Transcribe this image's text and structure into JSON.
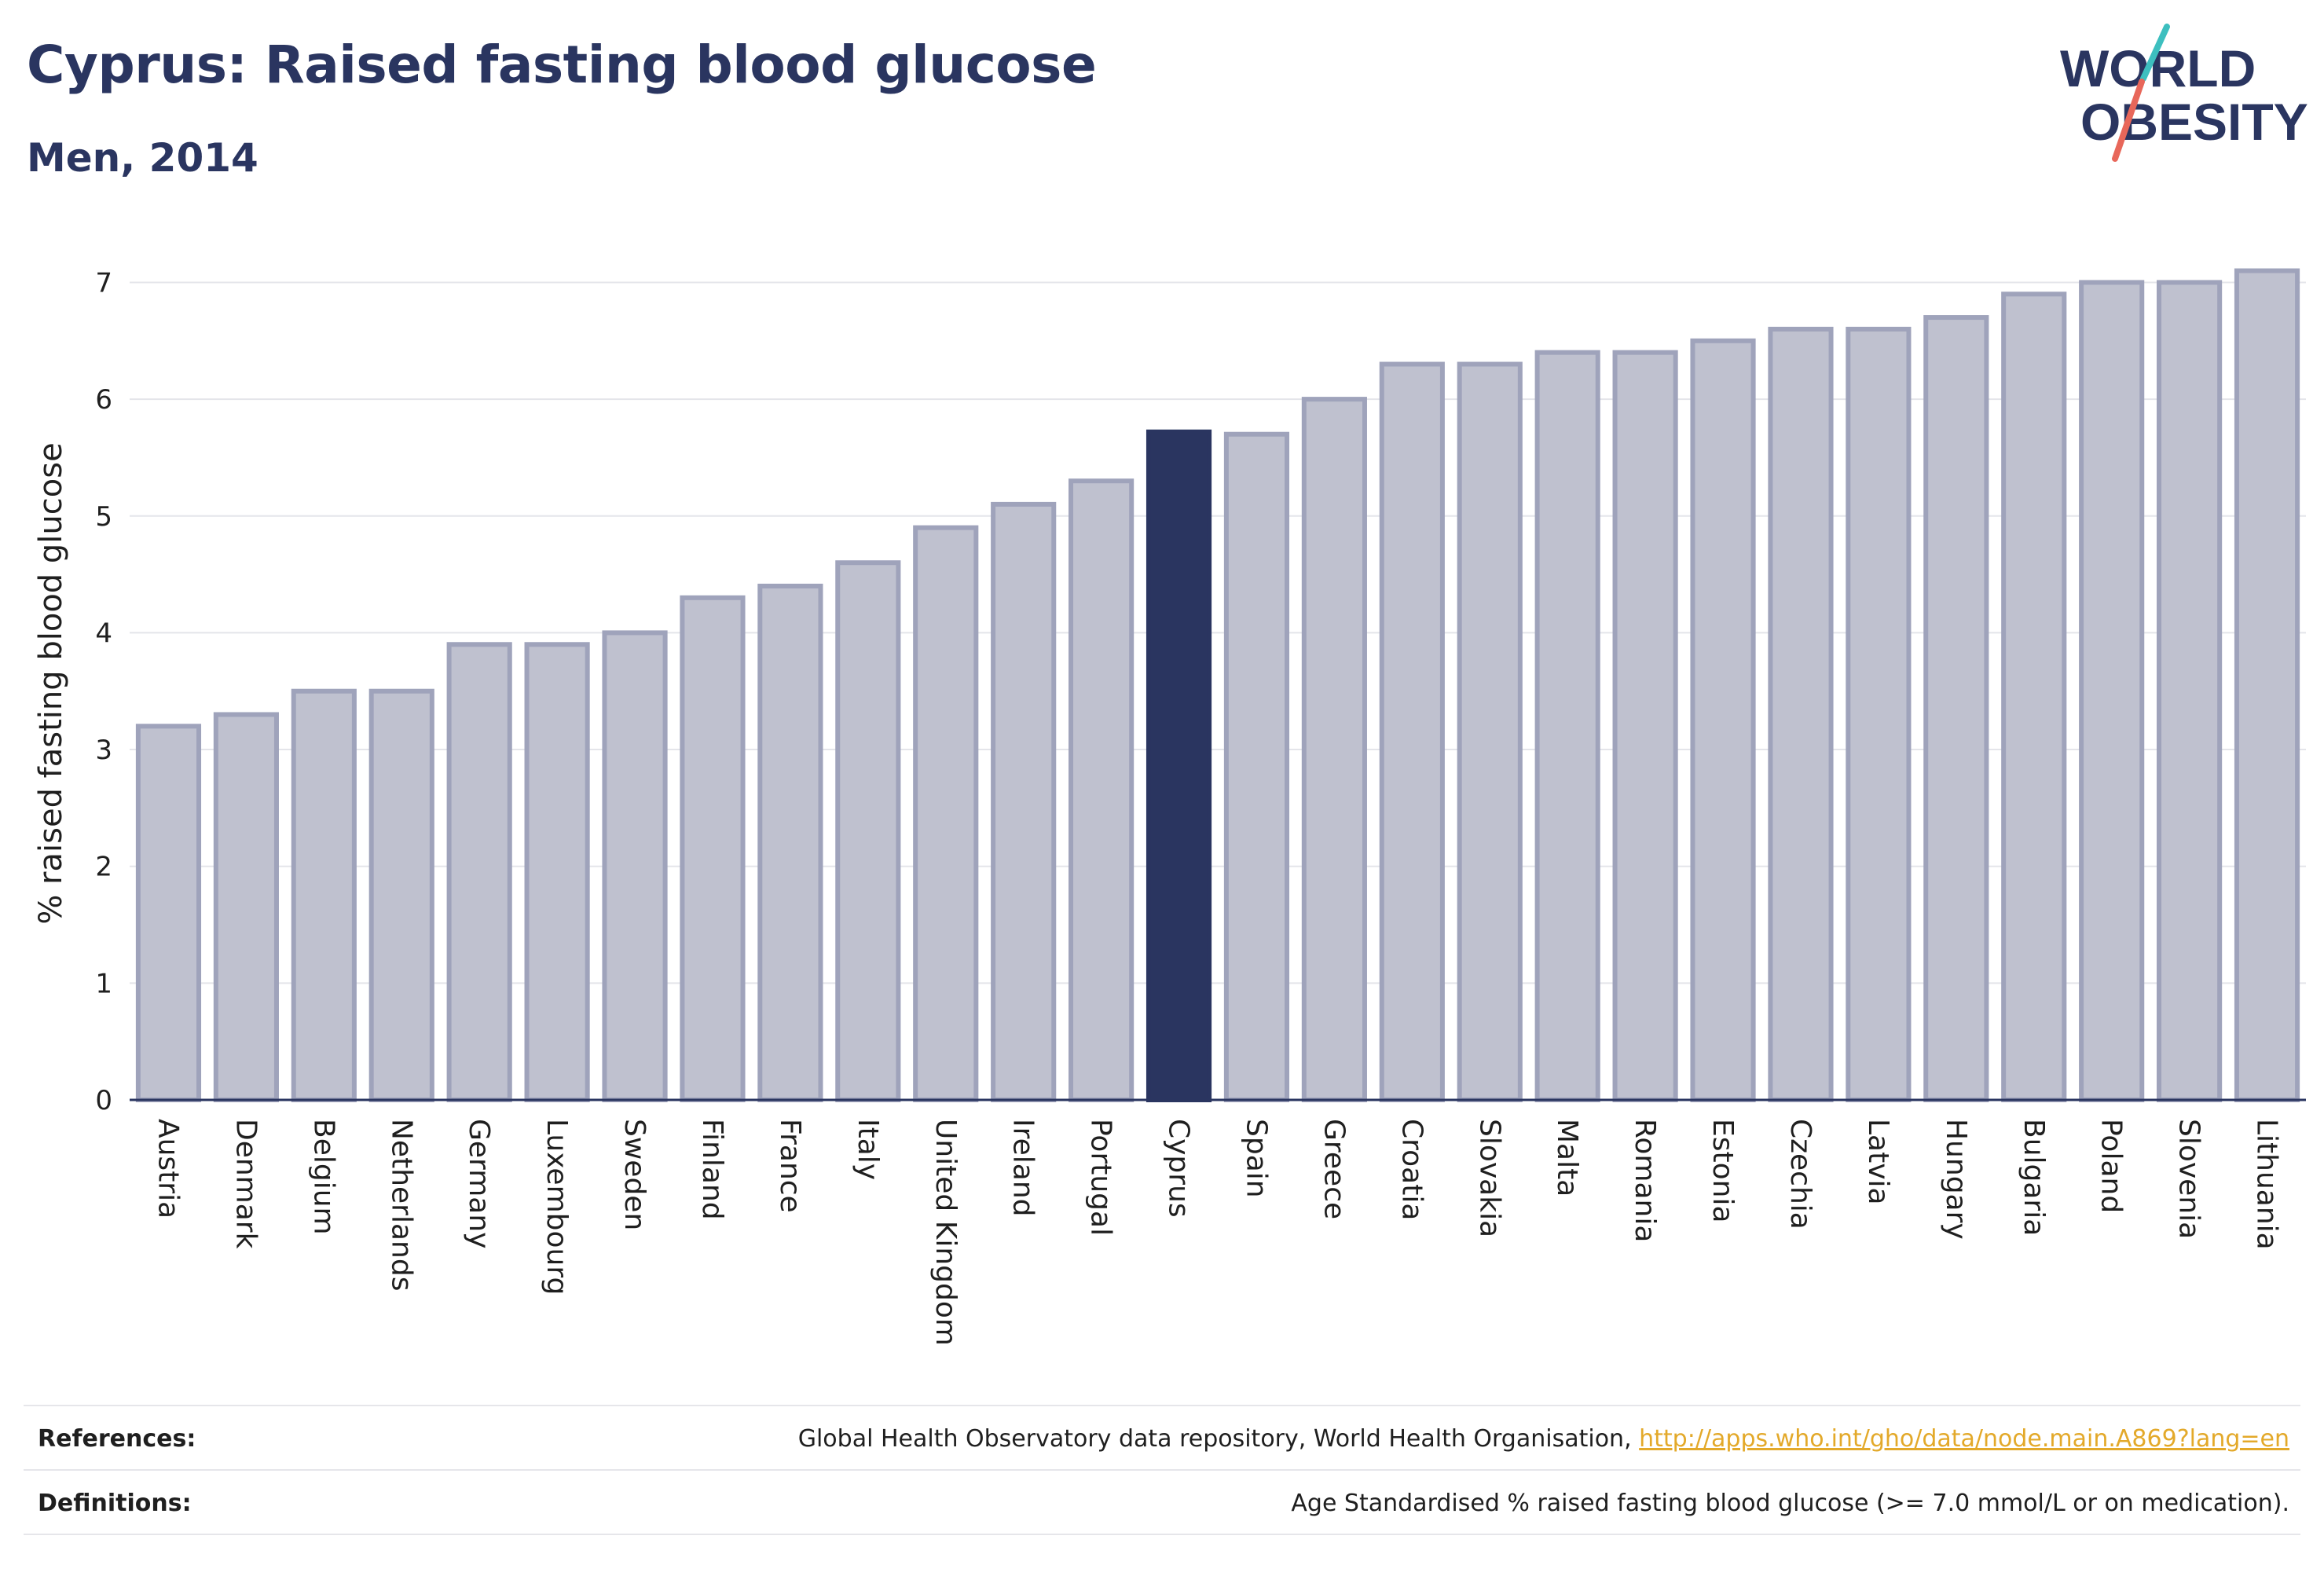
{
  "header": {
    "title": "Cyprus: Raised fasting blood glucose",
    "subtitle": "Men, 2014"
  },
  "logo": {
    "line1": "WORLD",
    "line2": "OBESITY"
  },
  "footer": {
    "references_label": "References:",
    "references_text": "Global Health Observatory data repository, World Health Organisation, ",
    "references_link": "http://apps.who.int/gho/data/node.main.A869?lang=en",
    "definitions_label": "Definitions:",
    "definitions_text": "Age Standardised % raised fasting blood glucose (>= 7.0 mmol/L or on medication)."
  },
  "colors": {
    "bar_default": "#bfc1cf",
    "bar_default_border": "#9fa3bb",
    "bar_highlight": "#2a3560",
    "title": "#2a3560",
    "link": "#e3a92a",
    "logo_slash_teal": "#3dbfbf",
    "logo_slash_red": "#e8675a"
  },
  "chart_data": {
    "type": "bar",
    "title": "Cyprus: Raised fasting blood glucose",
    "subtitle": "Men, 2014",
    "xlabel": "",
    "ylabel": "% raised fasting blood glucose",
    "ylim": [
      0,
      7.4
    ],
    "yticks": [
      0,
      1,
      2,
      3,
      4,
      5,
      6,
      7
    ],
    "grid": true,
    "highlight": "Cyprus",
    "categories": [
      "Austria",
      "Denmark",
      "Belgium",
      "Netherlands",
      "Germany",
      "Luxembourg",
      "Sweden",
      "Finland",
      "France",
      "Italy",
      "United Kingdom",
      "Ireland",
      "Portugal",
      "Cyprus",
      "Spain",
      "Greece",
      "Croatia",
      "Slovakia",
      "Malta",
      "Romania",
      "Estonia",
      "Czechia",
      "Latvia",
      "Hungary",
      "Bulgaria",
      "Poland",
      "Slovenia",
      "Lithuania"
    ],
    "values": [
      3.2,
      3.3,
      3.5,
      3.5,
      3.9,
      3.9,
      4.0,
      4.3,
      4.4,
      4.6,
      4.9,
      5.1,
      5.3,
      5.72,
      5.7,
      6.0,
      6.3,
      6.3,
      6.4,
      6.4,
      6.5,
      6.6,
      6.6,
      6.7,
      6.9,
      7.0,
      7.0,
      7.1
    ]
  }
}
